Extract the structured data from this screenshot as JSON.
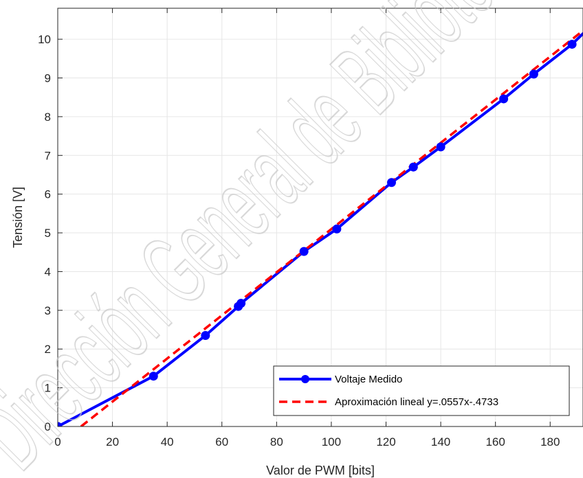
{
  "watermark": {
    "text": "Dirección General de Bibliotecas"
  },
  "chart_data": {
    "type": "line",
    "xlabel": "Valor de PWM [bits]",
    "ylabel": "Tensión [V]",
    "xlim": [
      0,
      192
    ],
    "ylim": [
      0,
      10.8
    ],
    "xticks": [
      0,
      20,
      40,
      60,
      80,
      100,
      120,
      140,
      160,
      180
    ],
    "yticks": [
      0,
      1,
      2,
      3,
      4,
      5,
      6,
      7,
      8,
      9,
      10
    ],
    "grid": true,
    "legend_position": "bottom-right",
    "series": [
      {
        "name": "Voltaje Medido",
        "style": "solid-markers",
        "color": "#0000ff",
        "x": [
          0,
          35,
          54,
          66,
          67,
          90,
          102,
          122,
          130,
          140,
          163,
          174,
          188,
          195
        ],
        "y": [
          0,
          1.3,
          2.35,
          3.1,
          3.18,
          4.52,
          5.1,
          6.3,
          6.7,
          7.22,
          8.46,
          9.1,
          9.87,
          10.35
        ]
      },
      {
        "name": "Aproximación lineal y=.0557x-.4733",
        "style": "dashed",
        "color": "#ff0000",
        "slope": 0.0557,
        "intercept": -0.4733,
        "x_range": [
          8.5,
          195
        ]
      }
    ]
  }
}
